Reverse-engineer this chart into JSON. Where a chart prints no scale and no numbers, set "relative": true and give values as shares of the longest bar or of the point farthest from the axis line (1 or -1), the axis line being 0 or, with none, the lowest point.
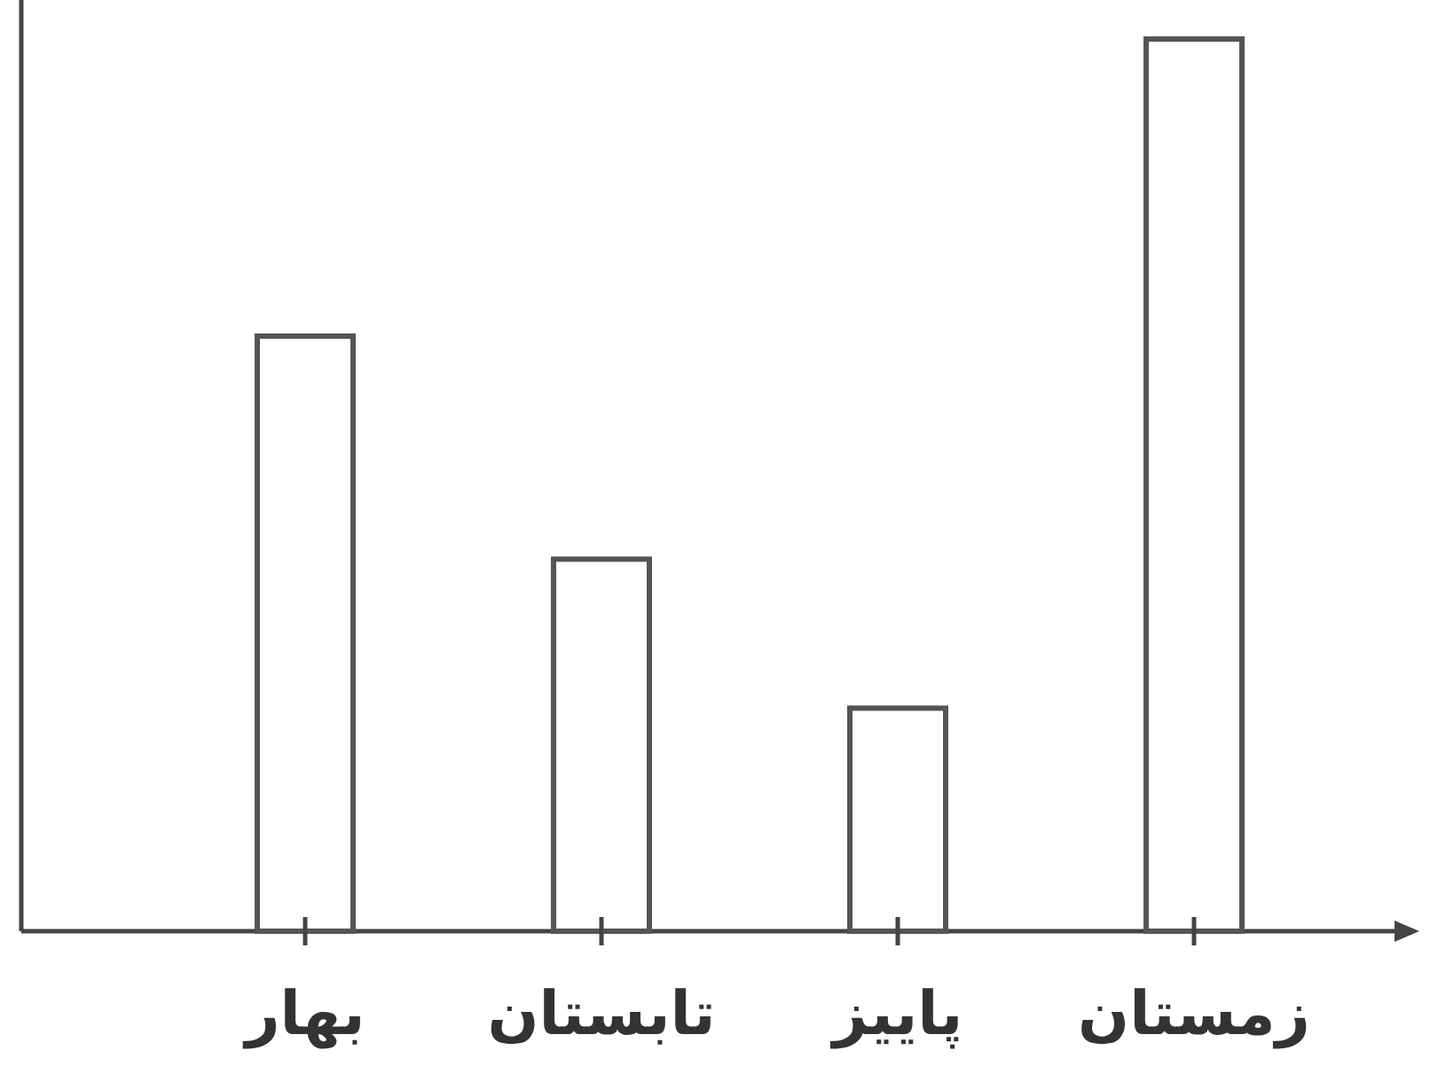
{
  "chart_data": {
    "type": "bar",
    "relative": true,
    "categories": [
      "بهار",
      "تابستان",
      "پاییز",
      "زمستان"
    ],
    "values": [
      0.667,
      0.417,
      0.25,
      1
    ],
    "color": "#ffffff"
  }
}
